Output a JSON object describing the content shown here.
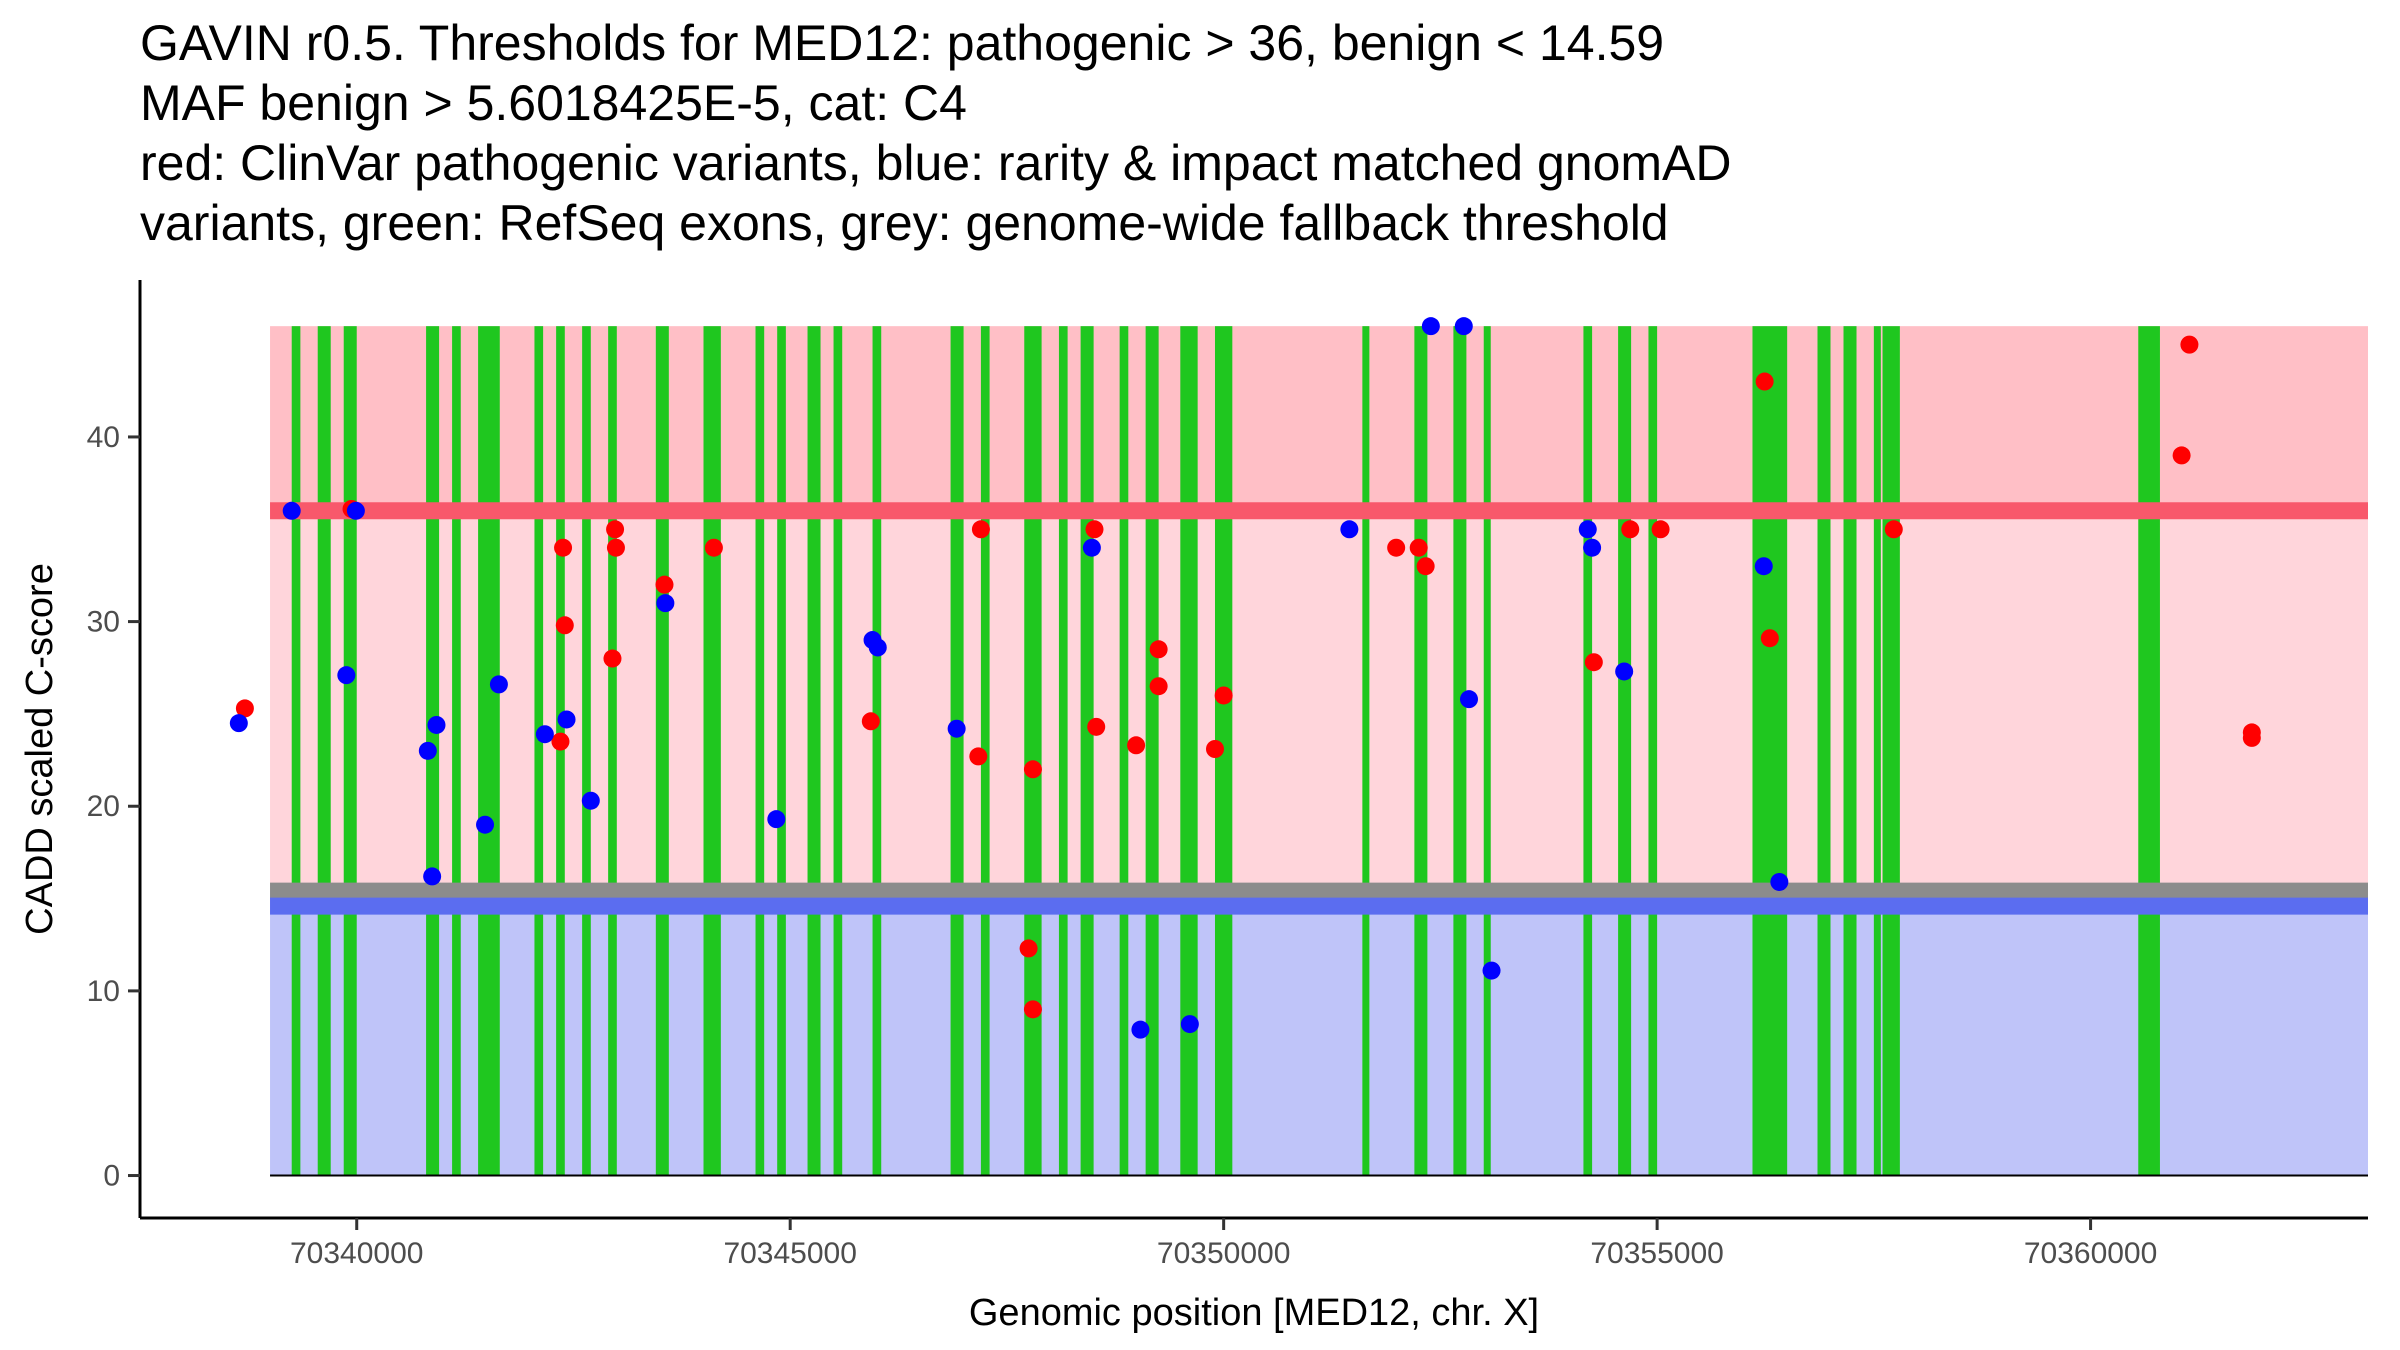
{
  "chart_data": {
    "type": "scatter",
    "title_lines": [
      "GAVIN r0.5. Thresholds for MED12: pathogenic > 36, benign < 14.59",
      "MAF benign > 5.6018425E-5, cat: C4",
      "red: ClinVar pathogenic variants, blue: rarity & impact matched gnomAD",
      "variants, green: RefSeq exons, grey: genome-wide fallback threshold"
    ],
    "xlabel": "Genomic position [MED12, chr. X]",
    "ylabel": "CADD scaled C-score",
    "xlim": [
      70337500,
      70363200
    ],
    "ylim": [
      -2.3,
      48.5
    ],
    "x_ticks": [
      70340000,
      70345000,
      70350000,
      70355000,
      70360000
    ],
    "x_tick_labels": [
      "70340000",
      "70345000",
      "70350000",
      "70355000",
      "70360000"
    ],
    "y_ticks": [
      0,
      10,
      20,
      30,
      40
    ],
    "y_tick_labels": [
      "0",
      "10",
      "20",
      "30",
      "40"
    ],
    "grid": false,
    "thresholds": {
      "pathogenic": 36,
      "benign": 14.59,
      "genome_wide_fallback": 15.4,
      "band_max": 46
    },
    "colors": {
      "pathogenic_region": "#ffd5db",
      "high_region": "#ffbfc6",
      "benign_region": "#bfc4f9",
      "pathogenic_line": "#f8586b",
      "benign_line": "#5b6df0",
      "fallback_line": "#8c8c8c",
      "exon": "#1fc71f",
      "clinvar": "#ff0000",
      "gnomad": "#0000ff"
    },
    "exons": [
      [
        70339250,
        70339350
      ],
      [
        70339550,
        70339700
      ],
      [
        70339850,
        70340000
      ],
      [
        70340800,
        70340950
      ],
      [
        70341100,
        70341200
      ],
      [
        70341400,
        70341650
      ],
      [
        70342050,
        70342150
      ],
      [
        70342300,
        70342400
      ],
      [
        70342600,
        70342700
      ],
      [
        70342900,
        70343000
      ],
      [
        70343450,
        70343600
      ],
      [
        70344000,
        70344200
      ],
      [
        70344600,
        70344700
      ],
      [
        70344850,
        70344950
      ],
      [
        70345200,
        70345350
      ],
      [
        70345500,
        70345600
      ],
      [
        70345950,
        70346050
      ],
      [
        70346850,
        70347000
      ],
      [
        70347200,
        70347300
      ],
      [
        70347700,
        70347900
      ],
      [
        70348100,
        70348200
      ],
      [
        70348350,
        70348500
      ],
      [
        70348800,
        70348900
      ],
      [
        70349100,
        70349250
      ],
      [
        70349500,
        70349700
      ],
      [
        70349900,
        70350100
      ],
      [
        70351600,
        70351650
      ],
      [
        70352200,
        70352350
      ],
      [
        70352650,
        70352800
      ],
      [
        70353000,
        70353050
      ],
      [
        70354150,
        70354250
      ],
      [
        70354550,
        70354700
      ],
      [
        70354900,
        70355000
      ],
      [
        70356100,
        70356500
      ],
      [
        70356850,
        70357000
      ],
      [
        70357150,
        70357300
      ],
      [
        70357500,
        70357550
      ],
      [
        70357600,
        70357800
      ],
      [
        70360550,
        70360800
      ]
    ],
    "series": [
      {
        "name": "ClinVar pathogenic variants",
        "color": "#ff0000",
        "points": [
          [
            70338710,
            25.3
          ],
          [
            70339940,
            36.1
          ],
          [
            70342380,
            34.0
          ],
          [
            70342400,
            29.8
          ],
          [
            70342350,
            23.5
          ],
          [
            70342950,
            28.0
          ],
          [
            70342980,
            35.0
          ],
          [
            70342990,
            34.0
          ],
          [
            70343550,
            32.0
          ],
          [
            70344120,
            34.0
          ],
          [
            70345930,
            24.6
          ],
          [
            70347200,
            35.0
          ],
          [
            70347170,
            22.7
          ],
          [
            70347800,
            22.0
          ],
          [
            70347750,
            12.3
          ],
          [
            70347800,
            9.0
          ],
          [
            70348510,
            35.0
          ],
          [
            70348530,
            24.3
          ],
          [
            70348990,
            23.3
          ],
          [
            70349250,
            28.5
          ],
          [
            70349250,
            26.5
          ],
          [
            70349900,
            23.1
          ],
          [
            70350000,
            26.0
          ],
          [
            70351990,
            34.0
          ],
          [
            70352250,
            34.0
          ],
          [
            70352330,
            33.0
          ],
          [
            70354270,
            27.8
          ],
          [
            70354690,
            35.0
          ],
          [
            70355040,
            35.0
          ],
          [
            70356240,
            43.0
          ],
          [
            70356300,
            29.1
          ],
          [
            70357730,
            35.0
          ],
          [
            70361050,
            39.0
          ],
          [
            70361140,
            45.0
          ],
          [
            70361860,
            24.0
          ],
          [
            70361860,
            23.7
          ]
        ]
      },
      {
        "name": "rarity & impact matched gnomAD variants",
        "color": "#0000ff",
        "points": [
          [
            70338640,
            24.5
          ],
          [
            70339250,
            36.0
          ],
          [
            70339880,
            27.1
          ],
          [
            70339990,
            36.0
          ],
          [
            70340820,
            23.0
          ],
          [
            70340870,
            16.2
          ],
          [
            70340920,
            24.4
          ],
          [
            70341480,
            19.0
          ],
          [
            70341640,
            26.6
          ],
          [
            70342170,
            23.9
          ],
          [
            70342420,
            24.7
          ],
          [
            70342700,
            20.3
          ],
          [
            70343560,
            31.0
          ],
          [
            70344840,
            19.3
          ],
          [
            70345950,
            29.0
          ],
          [
            70346010,
            28.6
          ],
          [
            70346920,
            24.2
          ],
          [
            70348480,
            34.0
          ],
          [
            70349040,
            7.9
          ],
          [
            70349610,
            8.2
          ],
          [
            70351450,
            35.0
          ],
          [
            70352390,
            46.0
          ],
          [
            70352770,
            46.0
          ],
          [
            70352830,
            25.8
          ],
          [
            70353090,
            11.1
          ],
          [
            70354200,
            35.0
          ],
          [
            70354250,
            34.0
          ],
          [
            70354620,
            27.3
          ],
          [
            70356230,
            33.0
          ],
          [
            70356410,
            15.9
          ]
        ]
      }
    ]
  }
}
